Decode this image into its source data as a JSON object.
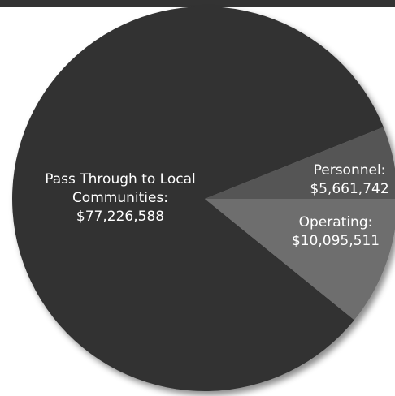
{
  "chart_data": {
    "type": "pie",
    "title": "",
    "slices": [
      {
        "label_lines": [
          "Pass Through to Local",
          "Communities:",
          "$77,226,588"
        ],
        "value": 77226588,
        "color": "#333333"
      },
      {
        "label_lines": [
          "Personnel:",
          "$5,661,742"
        ],
        "value": 5661742,
        "color": "#555555"
      },
      {
        "label_lines": [
          "Operating:",
          "$10,095,511"
        ],
        "value": 10095511,
        "color": "#6e6e6e"
      }
    ]
  }
}
